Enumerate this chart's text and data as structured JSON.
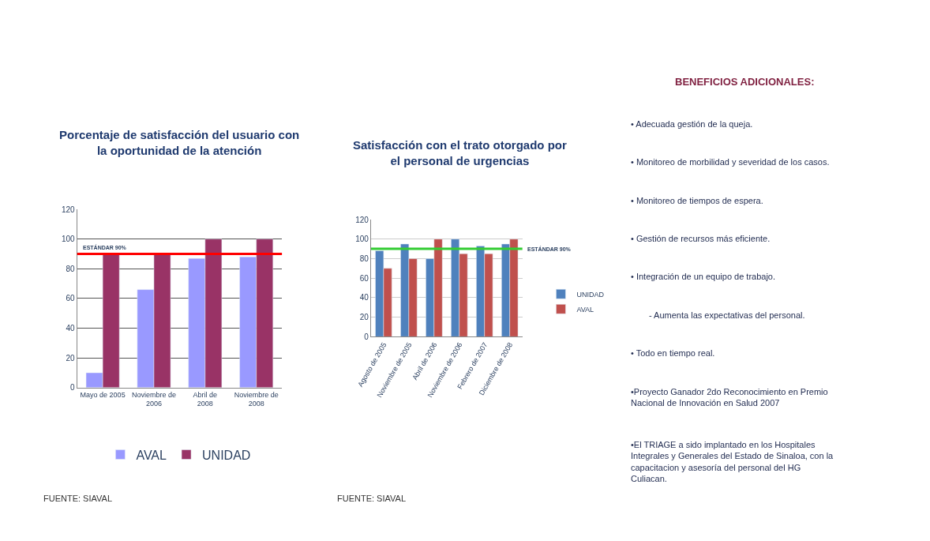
{
  "chart_data": [
    {
      "type": "bar",
      "title": "Porcentaje de satisfacción del usuario con la oportunidad de la atención",
      "categories": [
        "Mayo de 2005",
        "Noviembre de 2006",
        "Abril de 2008",
        "Noviembre de 2008"
      ],
      "series": [
        {
          "name": "AVAL",
          "color": "#9999ff",
          "values": [
            10,
            66,
            87,
            88
          ]
        },
        {
          "name": "UNIDAD",
          "color": "#993366",
          "values": [
            90,
            90,
            100,
            100
          ]
        }
      ],
      "ylim": [
        0,
        120
      ],
      "yticks": [
        0,
        20,
        40,
        60,
        80,
        100,
        120
      ],
      "grid": "y",
      "legend": "bottom",
      "ref_lines": [
        {
          "axis": "y",
          "value": 90,
          "label": "ESTÁNDAR 90%",
          "color": "#ff0000"
        }
      ],
      "annotations": [
        "FUENTE: SIAVAL"
      ]
    },
    {
      "type": "bar",
      "title": "Satisfacción con el trato otorgado por el personal de urgencias",
      "categories": [
        "Agosto de 2005",
        "Noviembre de 2005",
        "Abril de 2006",
        "Noviembre de 2006",
        "Febrero de 2007",
        "Diciembre de 2008"
      ],
      "series": [
        {
          "name": "UNIDAD",
          "color": "#4f81bd",
          "values": [
            88,
            95,
            80,
            100,
            93,
            95
          ]
        },
        {
          "name": "AVAL",
          "color": "#c0504d",
          "values": [
            70,
            80,
            100,
            85,
            85,
            100
          ]
        }
      ],
      "ylim": [
        0,
        120
      ],
      "yticks": [
        0,
        20,
        40,
        60,
        80,
        100,
        120
      ],
      "grid": "y",
      "legend": "right",
      "ref_lines": [
        {
          "axis": "y",
          "value": 90,
          "label": "ESTÁNDAR 90%",
          "color": "#33cc33"
        }
      ],
      "annotations": [
        "FUENTE: SIAVAL"
      ]
    },
    {
      "type": "other",
      "title": "BENEFICIOS ADICIONALES:",
      "annotations": [
        "• Adecuada gestión de la queja.",
        "• Monitoreo de morbilidad y severidad de los casos.",
        "• Monitoreo de tiempos de espera.",
        "• Gestión de recursos más eficiente.",
        "• Integración de un equipo de trabajo.",
        "- Aumenta las expectativas del personal.",
        "• Todo en tiempo real.",
        "•Proyecto Ganador 2do Reconocimiento en Premio Nacional de Innovación en Salud 2007",
        "•El TRIAGE a sido implantado en los Hospitales Integrales y Generales del Estado de Sinaloa, con la capacitacion y asesoría del personal del HG Culiacan."
      ]
    }
  ]
}
